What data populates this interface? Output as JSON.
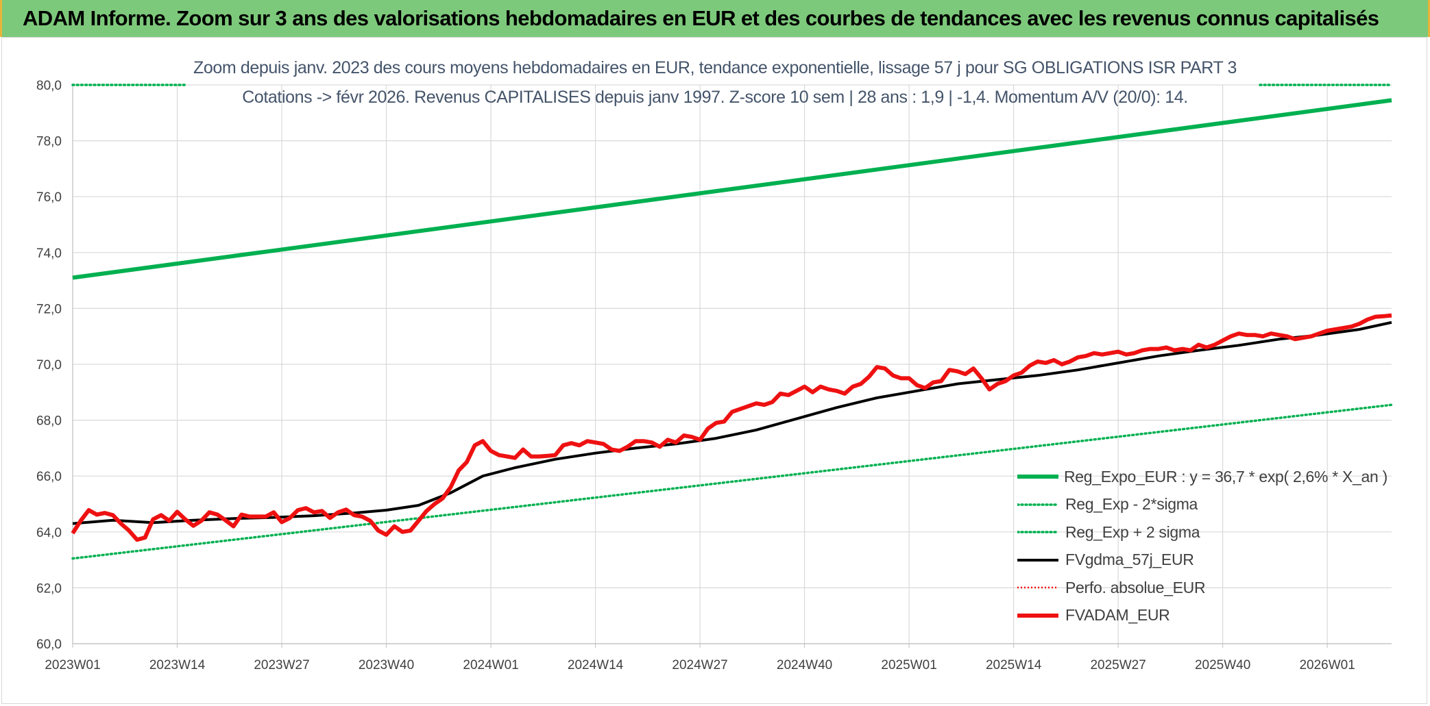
{
  "header": {
    "title": "ADAM Informe. Zoom sur 3 ans des valorisations hebdomadaires en EUR et des courbes de tendances avec les revenus connus capitalisés"
  },
  "chart_data": {
    "type": "line",
    "title_line1": "Zoom depuis janv. 2023 des cours moyens hebdomadaires en EUR, tendance exponentielle, lissage 57 j pour SG OBLIGATIONS ISR PART 3",
    "title_line2": "Cotations -> févr 2026. Revenus CAPITALISES depuis janv 1997. Z-score 10 sem | 28 ans : 1,9 | -1,4. Momentum A/V (20/0): 14.",
    "ylim": [
      60,
      80
    ],
    "yticks": [
      "60,0",
      "62,0",
      "64,0",
      "66,0",
      "68,0",
      "70,0",
      "72,0",
      "74,0",
      "76,0",
      "78,0",
      "80,0"
    ],
    "x_categories": [
      "2023W01",
      "2023W14",
      "2023W27",
      "2023W40",
      "2024W01",
      "2024W14",
      "2024W27",
      "2024W40",
      "2025W01",
      "2025W14",
      "2025W27",
      "2025W40",
      "2026W01"
    ],
    "weeks_total": 165,
    "series": [
      {
        "name": "Reg_Expo_EUR : y = 36,7 * exp( 2,6% *  X_an )",
        "color": "#00b050",
        "style": "solid-thick",
        "x": [
          0,
          164
        ],
        "values": [
          73.1,
          79.45
        ]
      },
      {
        "name": "Reg_Exp - 2*sigma",
        "color": "#00b050",
        "style": "dotted",
        "x": [
          0,
          164
        ],
        "values": [
          63.05,
          68.55
        ]
      },
      {
        "name": "Reg_Exp + 2 sigma",
        "color": "#00b050",
        "style": "dotted",
        "x": [
          0,
          164
        ],
        "values": [
          80.0,
          80.0
        ]
      },
      {
        "name": "FVgdma_57j_EUR",
        "color": "#000000",
        "style": "solid",
        "x": [
          0,
          5,
          10,
          15,
          20,
          25,
          30,
          35,
          39,
          43,
          47,
          51,
          55,
          60,
          65,
          70,
          75,
          80,
          85,
          90,
          95,
          100,
          105,
          110,
          115,
          120,
          125,
          130,
          135,
          140,
          145,
          150,
          155,
          160,
          164
        ],
        "values": [
          64.3,
          64.42,
          64.33,
          64.42,
          64.48,
          64.52,
          64.58,
          64.68,
          64.78,
          64.95,
          65.4,
          66.0,
          66.3,
          66.6,
          66.82,
          67.0,
          67.15,
          67.35,
          67.65,
          68.05,
          68.45,
          68.8,
          69.05,
          69.3,
          69.45,
          69.6,
          69.8,
          70.05,
          70.3,
          70.5,
          70.68,
          70.9,
          71.05,
          71.25,
          71.5
        ]
      },
      {
        "name": "Perfo. absolue_EUR",
        "color": "#ff0000",
        "style": "dotted",
        "x": [],
        "values": []
      },
      {
        "name": "FVADAM_EUR",
        "color": "#ff0000",
        "style": "solid-thick",
        "x": [
          0,
          1,
          2,
          3,
          4,
          5,
          6,
          7,
          8,
          9,
          10,
          11,
          12,
          13,
          14,
          15,
          16,
          17,
          18,
          19,
          20,
          21,
          22,
          23,
          24,
          25,
          26,
          27,
          28,
          29,
          30,
          31,
          32,
          33,
          34,
          35,
          36,
          37,
          38,
          39,
          40,
          41,
          42,
          43,
          44,
          45,
          46,
          47,
          48,
          49,
          50,
          51,
          52,
          53,
          54,
          55,
          56,
          57,
          58,
          59,
          60,
          61,
          62,
          63,
          64,
          65,
          66,
          67,
          68,
          69,
          70,
          71,
          72,
          73,
          74,
          75,
          76,
          77,
          78,
          79,
          80,
          81,
          82,
          83,
          84,
          85,
          86,
          87,
          88,
          89,
          90,
          91,
          92,
          93,
          94,
          95,
          96,
          97,
          98,
          99,
          100,
          101,
          102,
          103,
          104,
          105,
          106,
          107,
          108,
          109,
          110,
          111,
          112,
          113,
          114,
          115,
          116,
          117,
          118,
          119,
          120,
          121,
          122,
          123,
          124,
          125,
          126,
          127,
          128,
          129,
          130,
          131,
          132,
          133,
          134,
          135,
          136,
          137,
          138,
          139,
          140,
          141,
          142,
          143,
          144,
          145,
          146,
          147,
          148,
          149,
          150,
          151,
          152,
          153,
          154,
          155,
          156,
          157,
          158,
          159,
          160,
          161,
          162,
          163,
          164
        ],
        "values": [
          63.95,
          64.4,
          64.78,
          64.62,
          64.68,
          64.6,
          64.3,
          64.05,
          63.72,
          63.8,
          64.45,
          64.6,
          64.4,
          64.72,
          64.45,
          64.22,
          64.4,
          64.7,
          64.62,
          64.42,
          64.2,
          64.62,
          64.55,
          64.55,
          64.55,
          64.7,
          64.35,
          64.5,
          64.78,
          64.85,
          64.7,
          64.75,
          64.5,
          64.7,
          64.8,
          64.6,
          64.55,
          64.4,
          64.05,
          63.9,
          64.2,
          64.0,
          64.05,
          64.4,
          64.75,
          65.0,
          65.2,
          65.6,
          66.2,
          66.5,
          67.1,
          67.25,
          66.9,
          66.75,
          66.7,
          66.65,
          66.95,
          66.7,
          66.7,
          66.72,
          66.75,
          67.1,
          67.18,
          67.1,
          67.25,
          67.2,
          67.15,
          66.95,
          66.9,
          67.05,
          67.25,
          67.25,
          67.2,
          67.05,
          67.3,
          67.2,
          67.45,
          67.4,
          67.3,
          67.7,
          67.9,
          67.95,
          68.3,
          68.4,
          68.5,
          68.6,
          68.55,
          68.65,
          68.95,
          68.9,
          69.05,
          69.2,
          69.0,
          69.2,
          69.1,
          69.05,
          68.95,
          69.2,
          69.3,
          69.55,
          69.9,
          69.85,
          69.6,
          69.5,
          69.5,
          69.25,
          69.15,
          69.35,
          69.4,
          69.8,
          69.75,
          69.65,
          69.85,
          69.5,
          69.1,
          69.3,
          69.4,
          69.6,
          69.7,
          69.95,
          70.1,
          70.05,
          70.15,
          70.0,
          70.1,
          70.25,
          70.3,
          70.4,
          70.35,
          70.4,
          70.45,
          70.35,
          70.4,
          70.5,
          70.55,
          70.55,
          70.6,
          70.5,
          70.55,
          70.5,
          70.7,
          70.6,
          70.7,
          70.85,
          71.0,
          71.1,
          71.05,
          71.05,
          71.0,
          71.1,
          71.05,
          71.0,
          70.9,
          70.95,
          71.0,
          71.1,
          71.2,
          71.25,
          71.3,
          71.35,
          71.45,
          71.6,
          71.7,
          71.72,
          71.75
        ]
      }
    ],
    "grid": true,
    "legend_position": "bottom-right"
  }
}
